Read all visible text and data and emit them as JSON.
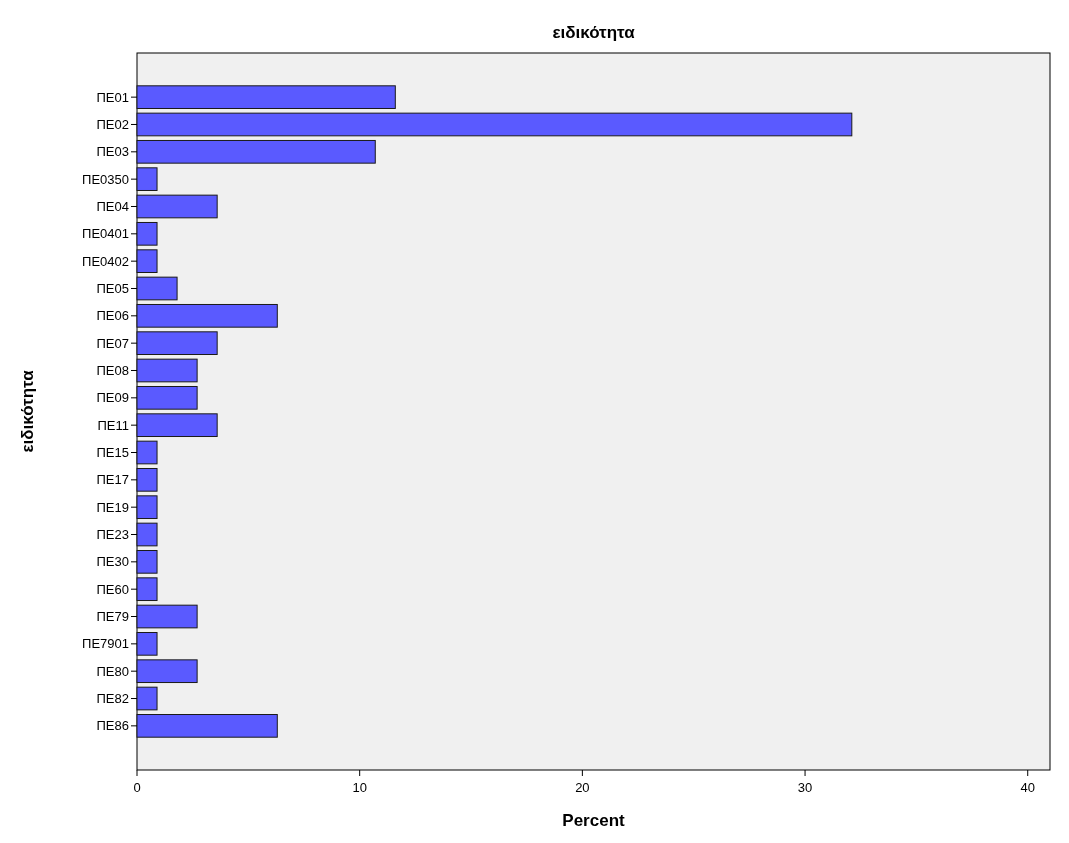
{
  "chart_data": {
    "type": "bar",
    "orientation": "horizontal",
    "title": "ειδικότητα",
    "xlabel": "Percent",
    "ylabel": "ειδικότητα",
    "categories": [
      "ΠΕ01",
      "ΠΕ02",
      "ΠΕ03",
      "ΠΕ0350",
      "ΠΕ04",
      "ΠΕ0401",
      "ΠΕ0402",
      "ΠΕ05",
      "ΠΕ06",
      "ΠΕ07",
      "ΠΕ08",
      "ΠΕ09",
      "ΠΕ11",
      "ΠΕ15",
      "ΠΕ17",
      "ΠΕ19",
      "ΠΕ23",
      "ΠΕ30",
      "ΠΕ60",
      "ΠΕ79",
      "ΠΕ7901",
      "ΠΕ80",
      "ΠΕ82",
      "ΠΕ86"
    ],
    "values": [
      11.6,
      32.1,
      10.7,
      0.9,
      3.6,
      0.9,
      0.9,
      1.8,
      6.3,
      3.6,
      2.7,
      2.7,
      3.6,
      0.9,
      0.9,
      0.9,
      0.9,
      0.9,
      0.9,
      2.7,
      0.9,
      2.7,
      0.9,
      6.3
    ],
    "color": "#5a5aff",
    "xlim": [
      0,
      41
    ],
    "xticks": [
      0,
      10,
      20,
      30,
      40
    ],
    "grid": false
  }
}
